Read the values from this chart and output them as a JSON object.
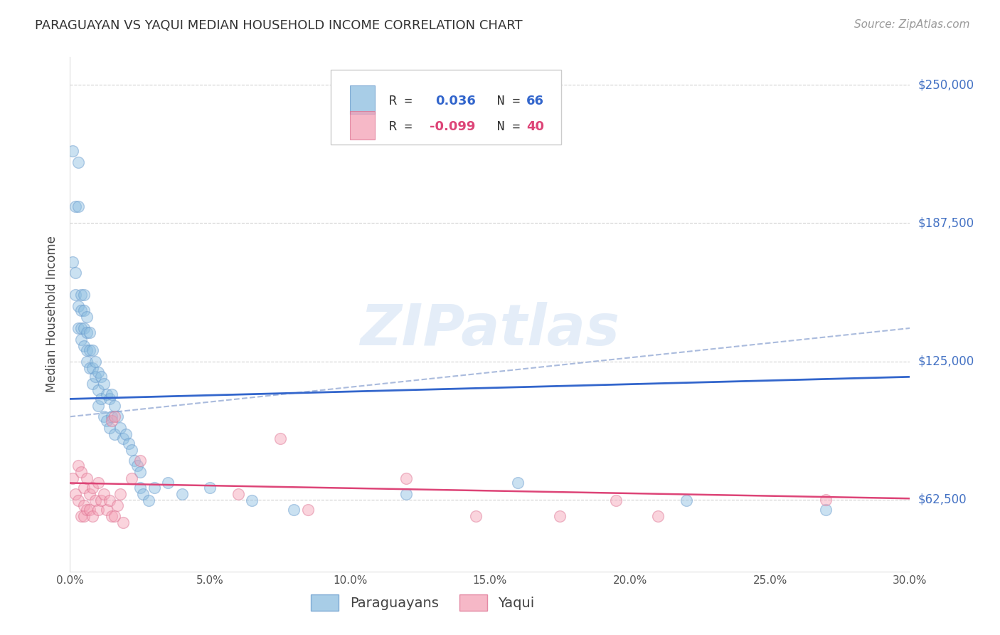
{
  "title": "PARAGUAYAN VS YAQUI MEDIAN HOUSEHOLD INCOME CORRELATION CHART",
  "source": "Source: ZipAtlas.com",
  "ylabel": "Median Household Income",
  "xlabel": "",
  "xlim": [
    0.0,
    0.3
  ],
  "ylim": [
    30000,
    262500
  ],
  "yticks": [
    62500,
    125000,
    187500,
    250000
  ],
  "ytick_labels": [
    "$62,500",
    "$125,000",
    "$187,500",
    "$250,000"
  ],
  "xticks": [
    0.0,
    0.05,
    0.1,
    0.15,
    0.2,
    0.25,
    0.3
  ],
  "xtick_labels": [
    "0.0%",
    "5.0%",
    "10.0%",
    "15.0%",
    "20.0%",
    "25.0%",
    "30.0%"
  ],
  "grid_color": "#cccccc",
  "background_color": "#ffffff",
  "paraguayan_color": "#8bbde0",
  "yaqui_color": "#f4a0b5",
  "paraguayan_edge": "#6699cc",
  "yaqui_edge": "#dd7090",
  "blue_line_color": "#3366cc",
  "pink_line_color": "#dd4477",
  "dashed_line_color": "#aabbdd",
  "R_paraguayan": 0.036,
  "N_paraguayan": 66,
  "R_yaqui": -0.099,
  "N_yaqui": 40,
  "legend_label_1": "Paraguayans",
  "legend_label_2": "Yaqui",
  "watermark": "ZIPatlas",
  "paraguayan_x": [
    0.001,
    0.001,
    0.002,
    0.002,
    0.002,
    0.003,
    0.003,
    0.003,
    0.003,
    0.004,
    0.004,
    0.004,
    0.004,
    0.005,
    0.005,
    0.005,
    0.005,
    0.006,
    0.006,
    0.006,
    0.006,
    0.007,
    0.007,
    0.007,
    0.008,
    0.008,
    0.008,
    0.009,
    0.009,
    0.01,
    0.01,
    0.01,
    0.011,
    0.011,
    0.012,
    0.012,
    0.013,
    0.013,
    0.014,
    0.014,
    0.015,
    0.015,
    0.016,
    0.016,
    0.017,
    0.018,
    0.019,
    0.02,
    0.021,
    0.022,
    0.023,
    0.024,
    0.025,
    0.025,
    0.026,
    0.028,
    0.03,
    0.035,
    0.04,
    0.05,
    0.065,
    0.08,
    0.12,
    0.16,
    0.22,
    0.27
  ],
  "paraguayan_y": [
    220000,
    170000,
    195000,
    165000,
    155000,
    215000,
    195000,
    150000,
    140000,
    155000,
    148000,
    140000,
    135000,
    155000,
    148000,
    140000,
    132000,
    145000,
    138000,
    130000,
    125000,
    138000,
    130000,
    122000,
    130000,
    122000,
    115000,
    125000,
    118000,
    120000,
    112000,
    105000,
    118000,
    108000,
    115000,
    100000,
    110000,
    98000,
    108000,
    95000,
    110000,
    100000,
    105000,
    92000,
    100000,
    95000,
    90000,
    92000,
    88000,
    85000,
    80000,
    78000,
    75000,
    68000,
    65000,
    62000,
    68000,
    70000,
    65000,
    68000,
    62000,
    58000,
    65000,
    70000,
    62000,
    58000
  ],
  "yaqui_x": [
    0.001,
    0.002,
    0.003,
    0.003,
    0.004,
    0.004,
    0.005,
    0.005,
    0.005,
    0.006,
    0.006,
    0.007,
    0.007,
    0.008,
    0.008,
    0.009,
    0.01,
    0.01,
    0.011,
    0.012,
    0.013,
    0.014,
    0.015,
    0.015,
    0.016,
    0.016,
    0.017,
    0.018,
    0.019,
    0.022,
    0.025,
    0.06,
    0.075,
    0.085,
    0.12,
    0.145,
    0.175,
    0.195,
    0.21,
    0.27
  ],
  "yaqui_y": [
    72000,
    65000,
    78000,
    62000,
    75000,
    55000,
    68000,
    60000,
    55000,
    72000,
    58000,
    65000,
    58000,
    68000,
    55000,
    62000,
    70000,
    58000,
    62000,
    65000,
    58000,
    62000,
    98000,
    55000,
    100000,
    55000,
    60000,
    65000,
    52000,
    72000,
    80000,
    65000,
    90000,
    58000,
    72000,
    55000,
    55000,
    62000,
    55000,
    62500
  ],
  "blue_line_y0": 108000,
  "blue_line_y1": 118000,
  "pink_line_y0": 70000,
  "pink_line_y1": 63000,
  "dash_line_y0": 100000,
  "dash_line_y1": 140000,
  "title_fontsize": 13,
  "source_fontsize": 11,
  "axis_label_fontsize": 11,
  "tick_label_fontsize": 10,
  "legend_fontsize": 12,
  "marker_size": 130,
  "marker_alpha": 0.45
}
